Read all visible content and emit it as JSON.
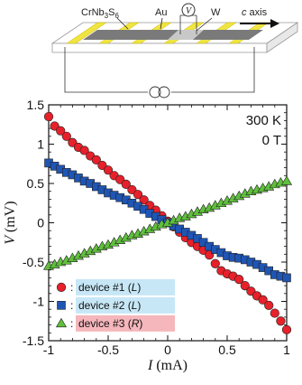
{
  "schematic": {
    "material_label": "CrNb3S6",
    "au_label": "Au",
    "w_label": "W",
    "voltmeter_label": "V",
    "axis_label": "c axis",
    "colors": {
      "electrode": "#f0e442",
      "crystal": "#7a7a7a",
      "wire": "#c8c8c8",
      "substrate": "#ffffff"
    }
  },
  "chart_data": {
    "type": "scatter",
    "xlabel": "I (mA)",
    "ylabel": "V (mV)",
    "xlim": [
      -1,
      1
    ],
    "ylim": [
      -1.5,
      1.5
    ],
    "xticks": [
      "-1",
      "-0.5",
      "0",
      "0.5",
      "1"
    ],
    "yticks": [
      "1.5",
      "1",
      "0.5",
      "0",
      "-0.5",
      "-1",
      "-1.5"
    ],
    "annotations": [
      "300 K",
      "0 T"
    ],
    "legend_position": "bottom-left",
    "series": [
      {
        "name": "device #1 (L)",
        "marker": "circle",
        "color": "#e8202a",
        "legend_bg": "#c7e7f6",
        "x": [
          -1.0,
          -0.95,
          -0.9,
          -0.85,
          -0.8,
          -0.75,
          -0.7,
          -0.65,
          -0.6,
          -0.55,
          -0.5,
          -0.45,
          -0.4,
          -0.35,
          -0.3,
          -0.25,
          -0.2,
          -0.15,
          -0.1,
          -0.05,
          0.0,
          0.05,
          0.1,
          0.15,
          0.2,
          0.25,
          0.3,
          0.35,
          0.4,
          0.45,
          0.5,
          0.55,
          0.6,
          0.65,
          0.7,
          0.75,
          0.8,
          0.85,
          0.9,
          0.95,
          1.0
        ],
        "y": [
          1.35,
          1.23,
          1.17,
          1.1,
          1.02,
          0.96,
          0.92,
          0.85,
          0.8,
          0.73,
          0.67,
          0.6,
          0.55,
          0.49,
          0.42,
          0.36,
          0.29,
          0.22,
          0.16,
          0.09,
          0.02,
          -0.05,
          -0.12,
          -0.19,
          -0.25,
          -0.3,
          -0.35,
          -0.41,
          -0.52,
          -0.61,
          -0.65,
          -0.68,
          -0.72,
          -0.8,
          -0.87,
          -0.93,
          -0.98,
          -1.05,
          -1.15,
          -1.25,
          -1.36
        ]
      },
      {
        "name": "device #2 (L)",
        "marker": "square",
        "color": "#1f55b4",
        "legend_bg": "#c7e7f6",
        "x": [
          -1.0,
          -0.95,
          -0.9,
          -0.85,
          -0.8,
          -0.75,
          -0.7,
          -0.65,
          -0.6,
          -0.55,
          -0.5,
          -0.45,
          -0.4,
          -0.35,
          -0.3,
          -0.25,
          -0.2,
          -0.15,
          -0.1,
          -0.05,
          0.0,
          0.05,
          0.1,
          0.15,
          0.2,
          0.25,
          0.3,
          0.35,
          0.4,
          0.45,
          0.5,
          0.55,
          0.6,
          0.65,
          0.7,
          0.75,
          0.8,
          0.85,
          0.9,
          0.95,
          1.0
        ],
        "y": [
          0.76,
          0.72,
          0.68,
          0.64,
          0.61,
          0.57,
          0.53,
          0.5,
          0.46,
          0.42,
          0.38,
          0.35,
          0.32,
          0.29,
          0.25,
          0.21,
          0.17,
          0.12,
          0.08,
          0.04,
          0.0,
          -0.04,
          -0.08,
          -0.12,
          -0.16,
          -0.2,
          -0.25,
          -0.3,
          -0.34,
          -0.38,
          -0.42,
          -0.44,
          -0.45,
          -0.47,
          -0.5,
          -0.53,
          -0.57,
          -0.61,
          -0.66,
          -0.68,
          -0.7
        ]
      },
      {
        "name": "device #3 (R)",
        "marker": "triangle",
        "color": "#5fbf3c",
        "legend_bg": "#f5b6bc",
        "x": [
          -1.0,
          -0.95,
          -0.9,
          -0.85,
          -0.8,
          -0.75,
          -0.7,
          -0.65,
          -0.6,
          -0.55,
          -0.5,
          -0.45,
          -0.4,
          -0.35,
          -0.3,
          -0.25,
          -0.2,
          -0.15,
          -0.1,
          -0.05,
          0.0,
          0.05,
          0.1,
          0.15,
          0.2,
          0.25,
          0.3,
          0.35,
          0.4,
          0.45,
          0.5,
          0.55,
          0.6,
          0.65,
          0.7,
          0.75,
          0.8,
          0.85,
          0.9,
          0.95,
          1.0
        ],
        "y": [
          -0.55,
          -0.53,
          -0.5,
          -0.48,
          -0.45,
          -0.42,
          -0.39,
          -0.36,
          -0.33,
          -0.3,
          -0.28,
          -0.25,
          -0.22,
          -0.19,
          -0.16,
          -0.14,
          -0.11,
          -0.08,
          -0.05,
          -0.02,
          0.0,
          0.03,
          0.06,
          0.08,
          0.11,
          0.14,
          0.17,
          0.19,
          0.22,
          0.25,
          0.28,
          0.31,
          0.34,
          0.37,
          0.4,
          0.42,
          0.44,
          0.46,
          0.49,
          0.51,
          0.53
        ]
      }
    ]
  }
}
